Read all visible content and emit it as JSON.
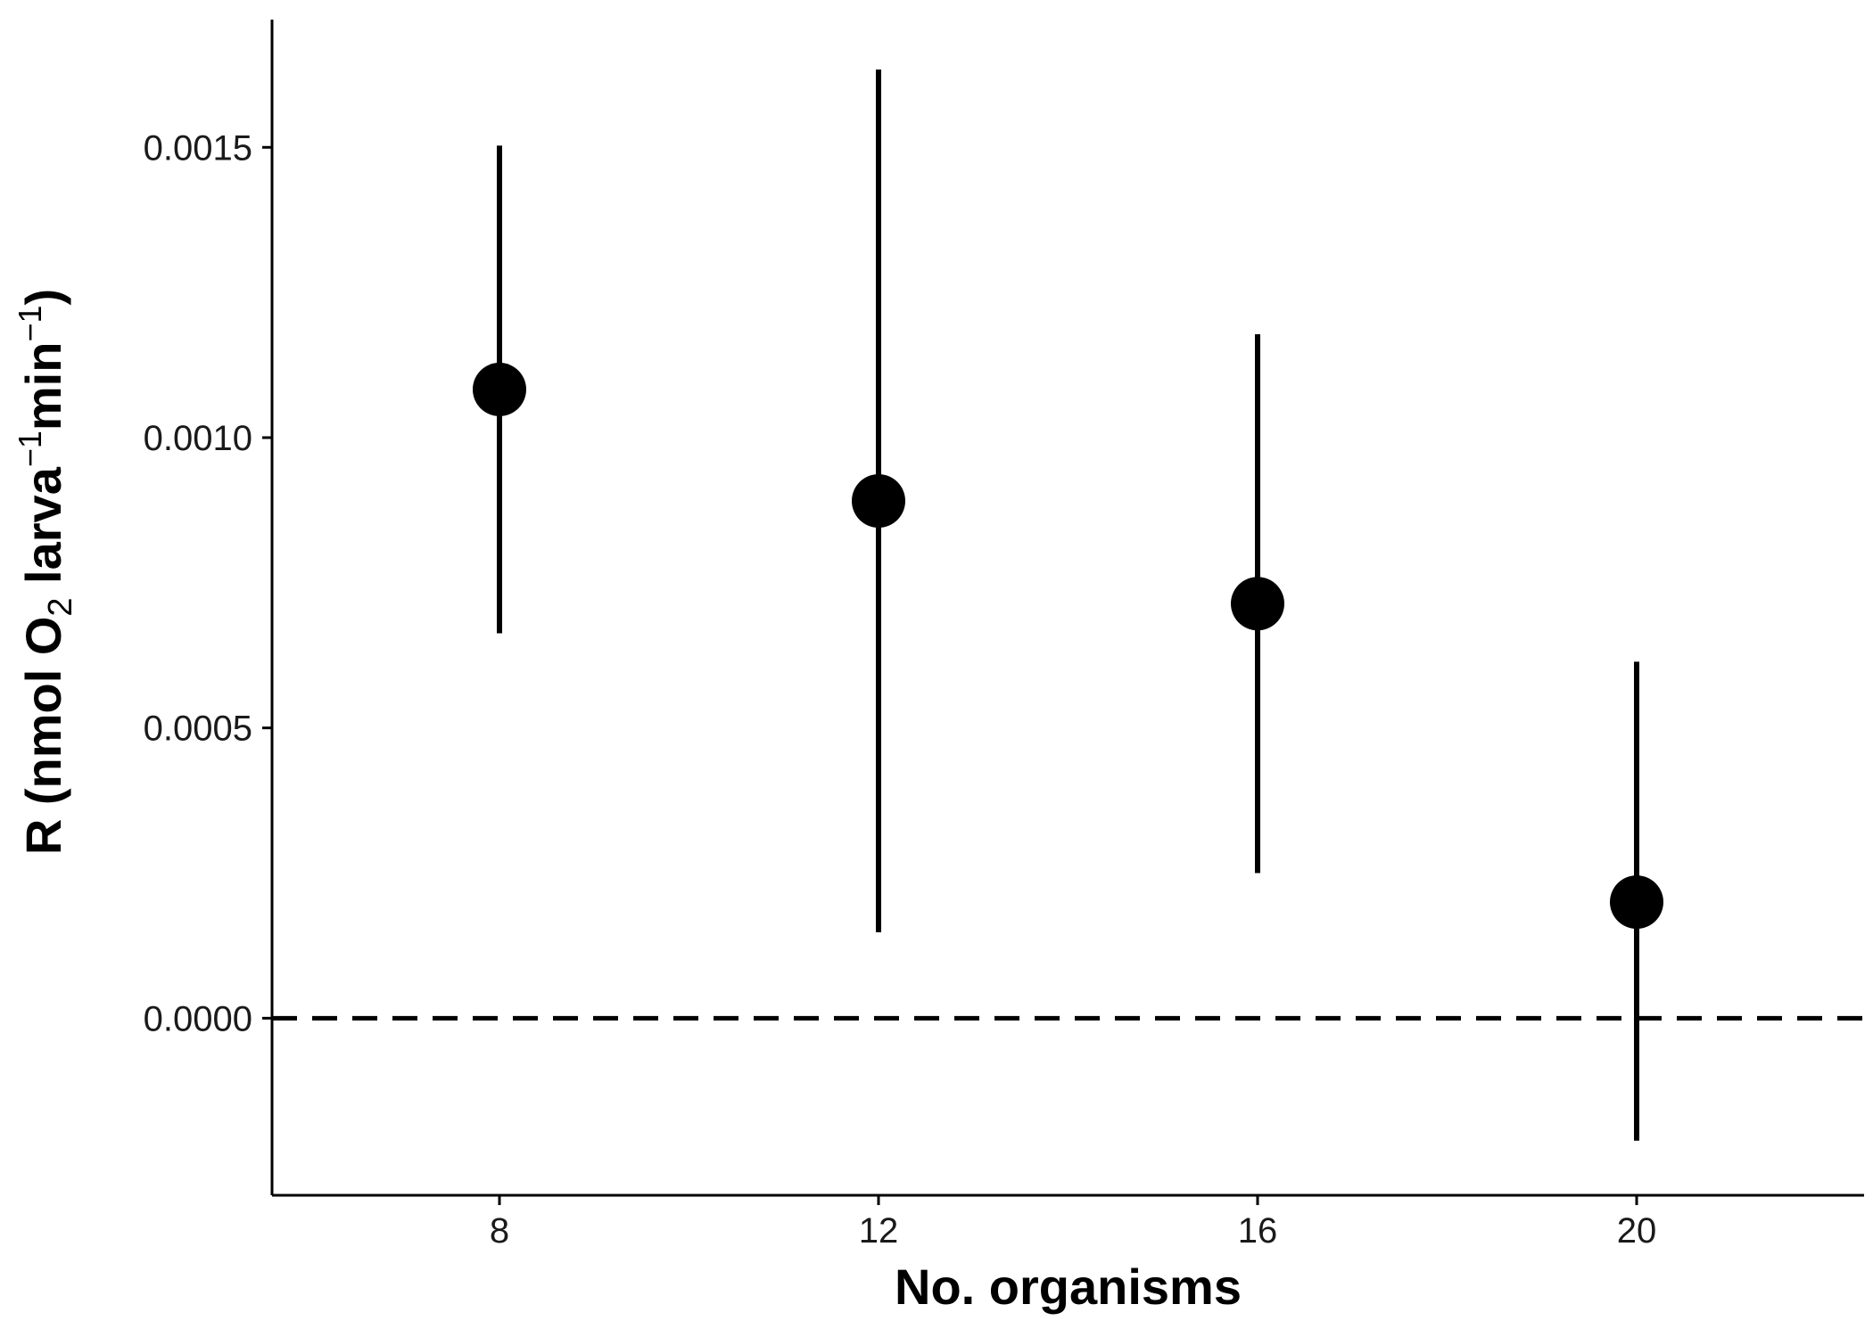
{
  "chart_data": {
    "type": "scatter",
    "title": "",
    "xlabel": "No. organisms",
    "ylabel": {
      "prefix": "R (nmol O",
      "sub": "2",
      "mid1": " larva",
      "sup1": "−1",
      "mid2": "min",
      "sup2": "−1",
      "suffix": ")"
    },
    "xlim": [
      5.6,
      22.4
    ],
    "ylim": [
      -0.000305,
      0.00172
    ],
    "x_ticks": [
      8,
      12,
      16,
      20
    ],
    "x_tick_labels": [
      "8",
      "12",
      "16",
      "20"
    ],
    "y_ticks": [
      0.0,
      0.0005,
      0.001,
      0.0015
    ],
    "y_tick_labels": [
      "0.0000",
      "0.0005",
      "0.0010",
      "0.0015"
    ],
    "grid": false,
    "reference_line": {
      "y": 0.0,
      "style": "dashed"
    },
    "series": [
      {
        "points": [
          {
            "x": 8,
            "y": 0.001083,
            "ymin": 0.000663,
            "ymax": 0.001503
          },
          {
            "x": 12,
            "y": 0.000891,
            "ymin": 0.000148,
            "ymax": 0.001634
          },
          {
            "x": 16,
            "y": 0.000714,
            "ymin": 0.00025,
            "ymax": 0.001178
          },
          {
            "x": 20,
            "y": 0.0002,
            "ymin": -0.000211,
            "ymax": 0.000614
          }
        ]
      }
    ]
  }
}
